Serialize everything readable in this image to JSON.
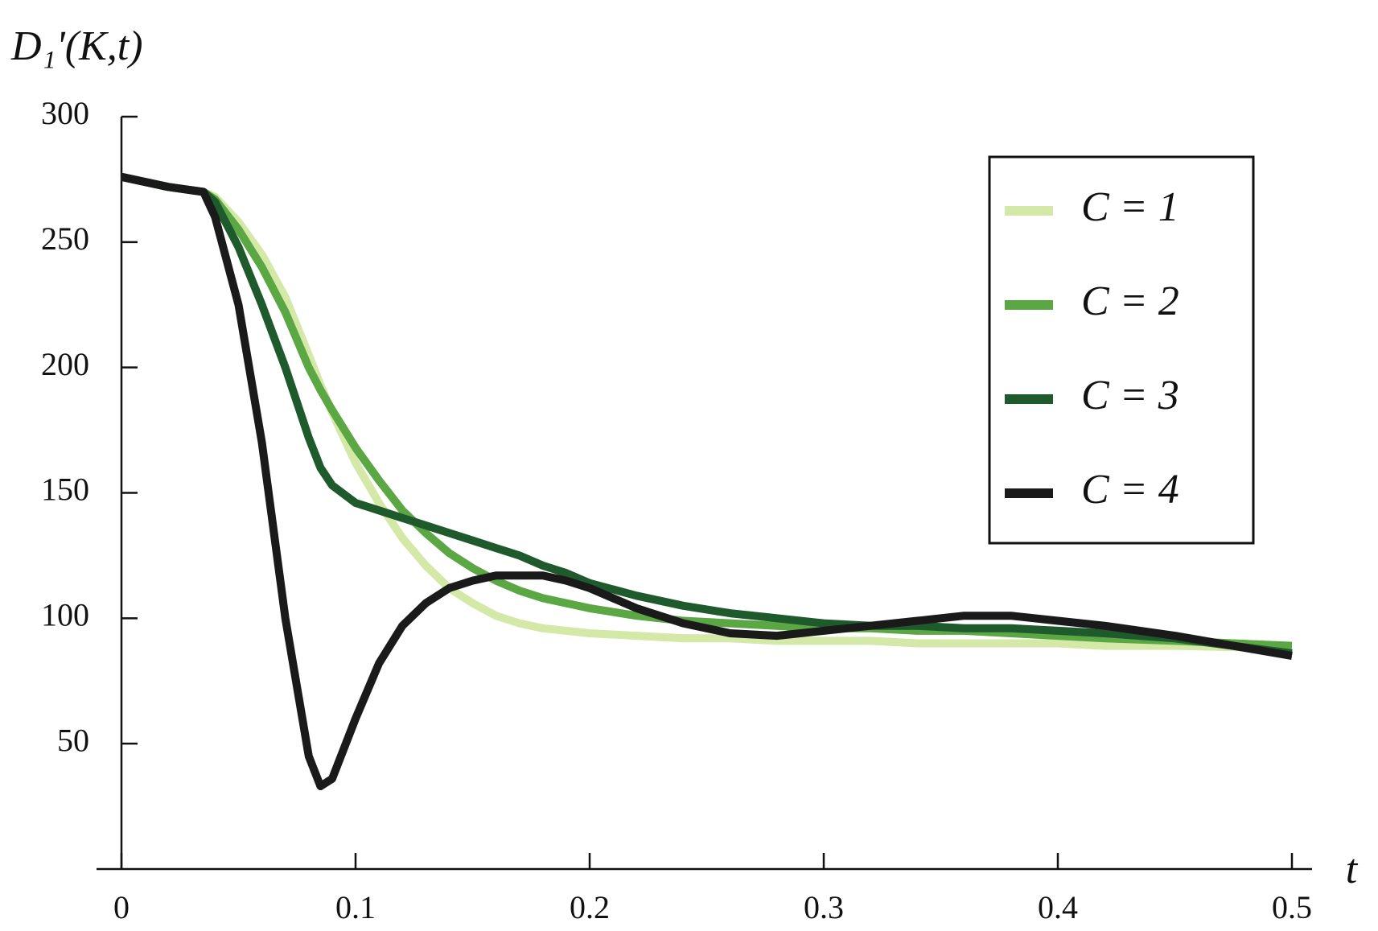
{
  "chart_data": {
    "type": "line",
    "y_label": "D₁'(K,t)",
    "x_label": "t",
    "x": [
      0,
      0.02,
      0.035,
      0.04,
      0.05,
      0.06,
      0.07,
      0.08,
      0.085,
      0.09,
      0.1,
      0.11,
      0.12,
      0.13,
      0.14,
      0.15,
      0.16,
      0.17,
      0.18,
      0.19,
      0.2,
      0.22,
      0.24,
      0.26,
      0.28,
      0.3,
      0.32,
      0.34,
      0.36,
      0.38,
      0.4,
      0.42,
      0.45,
      0.5
    ],
    "series": [
      {
        "name": "C = 1",
        "color": "#d4e8a8",
        "values": [
          276,
          272,
          270,
          268,
          258,
          245,
          228,
          205,
          193,
          182,
          162,
          146,
          132,
          121,
          112,
          106,
          101,
          98,
          96,
          95,
          94,
          93,
          92,
          92,
          91,
          91,
          91,
          90,
          90,
          90,
          90,
          89,
          89,
          88
        ]
      },
      {
        "name": "C = 2",
        "color": "#5aa744",
        "values": [
          276,
          272,
          270,
          267,
          255,
          240,
          222,
          200,
          191,
          183,
          168,
          155,
          143,
          134,
          126,
          120,
          115,
          111,
          108,
          106,
          104,
          101,
          99,
          98,
          97,
          96,
          96,
          95,
          95,
          94,
          93,
          92,
          91,
          89
        ]
      },
      {
        "name": "C = 3",
        "color": "#1f5a2c",
        "values": [
          276,
          272,
          270,
          266,
          248,
          225,
          200,
          172,
          160,
          153,
          146,
          143,
          140,
          137,
          134,
          131,
          128,
          125,
          121,
          118,
          114,
          109,
          105,
          102,
          100,
          98,
          97,
          97,
          96,
          96,
          95,
          94,
          92,
          86
        ]
      },
      {
        "name": "C = 4",
        "color": "#1a1a1a",
        "values": [
          276,
          272,
          270,
          260,
          225,
          170,
          100,
          45,
          33,
          36,
          60,
          82,
          97,
          106,
          112,
          115,
          117,
          117,
          117,
          115,
          112,
          104,
          98,
          94,
          93,
          95,
          97,
          99,
          101,
          101,
          99,
          97,
          93,
          85
        ]
      }
    ],
    "xlim": [
      0,
      0.51
    ],
    "ylim": [
      0,
      300
    ],
    "xticks": [
      0,
      0.1,
      0.2,
      0.3,
      0.4,
      0.5
    ],
    "yticks": [
      50,
      100,
      150,
      200,
      250,
      300
    ],
    "legend": "upper-right"
  }
}
